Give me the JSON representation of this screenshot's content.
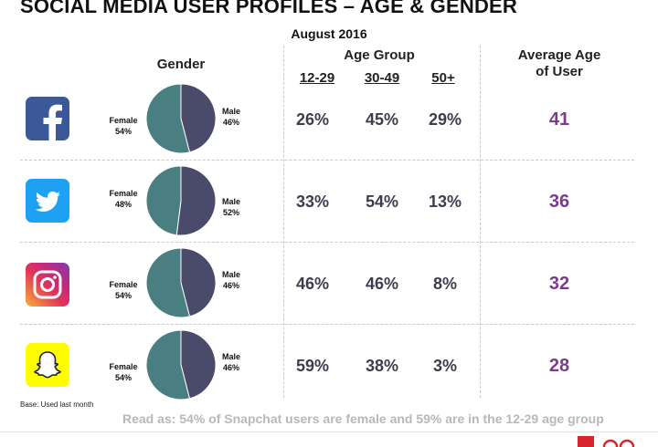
{
  "title": "SOCIAL MEDIA USER PROFILES – AGE & GENDER",
  "subtitle": "August 2016",
  "headers": {
    "gender": "Gender",
    "age_group": "Age Group",
    "age_cols": [
      "12-29",
      "30-49",
      "50+"
    ],
    "average_age_line1": "Average Age",
    "average_age_line2": "of User"
  },
  "pie_labels": {
    "female": "Female",
    "male": "Male"
  },
  "colors": {
    "female": "#4a7f82",
    "male": "#4a4a6b",
    "avg": "#7b3a8c",
    "pct": "#3d3d4f"
  },
  "chart_data": {
    "type": "table",
    "title": "SOCIAL MEDIA USER PROFILES – AGE & GENDER",
    "subtitle": "August 2016",
    "columns": [
      "Gender",
      "12-29",
      "30-49",
      "50+",
      "Average Age of User"
    ],
    "rows": [
      {
        "platform": "Facebook",
        "icon": "facebook-icon",
        "female": "54%",
        "male": "46%",
        "female_value": 54,
        "male_value": 46,
        "age": [
          "26%",
          "45%",
          "29%"
        ],
        "avg_age": "41"
      },
      {
        "platform": "Twitter",
        "icon": "twitter-icon",
        "female": "48%",
        "male": "52%",
        "female_value": 48,
        "male_value": 52,
        "age": [
          "33%",
          "54%",
          "13%"
        ],
        "avg_age": "36"
      },
      {
        "platform": "Instagram",
        "icon": "instagram-icon",
        "female": "54%",
        "male": "46%",
        "female_value": 54,
        "male_value": 46,
        "age": [
          "46%",
          "46%",
          "8%"
        ],
        "avg_age": "32"
      },
      {
        "platform": "Snapchat",
        "icon": "snapchat-icon",
        "female": "54%",
        "male": "46%",
        "female_value": 54,
        "male_value": 46,
        "age": [
          "59%",
          "38%",
          "3%"
        ],
        "avg_age": "28"
      }
    ]
  },
  "footer": {
    "base": "Base: Used last month",
    "note": "Read as: 54% of Snapchat users are female and 59% are in the 12-29 age group"
  }
}
